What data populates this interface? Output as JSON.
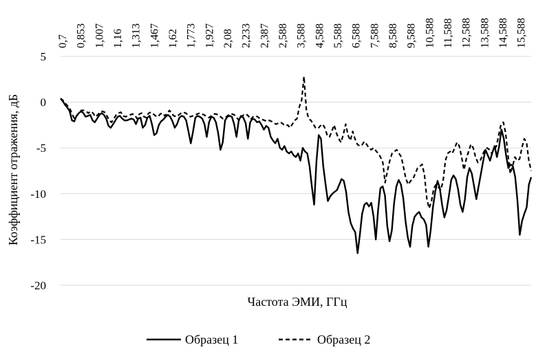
{
  "chart_data": {
    "type": "line",
    "title": "",
    "xlabel": "Частота ЭМИ, ГГц",
    "ylabel": "Коэффициент отражения, дБ",
    "ylim": [
      -20,
      5
    ],
    "yticks": [
      "5",
      "0",
      "-5",
      "-10",
      "-15",
      "-20"
    ],
    "x_tick_labels": [
      "0,7",
      "0,853",
      "1,007",
      "1,16",
      "1,313",
      "1,467",
      "1,62",
      "1,773",
      "1,927",
      "2,08",
      "2,233",
      "2,387",
      "2,588",
      "3,588",
      "4,588",
      "5,588",
      "6,588",
      "7,588",
      "8,588",
      "9,588",
      "10,588",
      "11,588",
      "12,588",
      "13,588",
      "14,588",
      "15,588"
    ],
    "grid": "horizontal",
    "legend_position": "bottom",
    "series": [
      {
        "name": "Образец 1",
        "style": "solid",
        "color": "#000000",
        "values": [
          0.4,
          0.1,
          -0.3,
          -0.6,
          -1.0,
          -2.0,
          -2.1,
          -1.5,
          -1.2,
          -1.0,
          -1.2,
          -1.6,
          -1.5,
          -1.4,
          -2.0,
          -2.2,
          -1.8,
          -1.4,
          -1.2,
          -1.4,
          -1.8,
          -2.6,
          -2.8,
          -2.4,
          -2.0,
          -1.6,
          -1.5,
          -1.8,
          -2.0,
          -2.0,
          -1.9,
          -1.8,
          -1.9,
          -2.4,
          -1.8,
          -1.7,
          -2.8,
          -2.5,
          -1.7,
          -1.5,
          -2.4,
          -3.6,
          -3.4,
          -2.5,
          -2.1,
          -1.9,
          -1.6,
          -1.4,
          -1.6,
          -2.1,
          -2.8,
          -2.4,
          -1.7,
          -1.5,
          -1.6,
          -2.0,
          -3.2,
          -4.5,
          -3.2,
          -1.7,
          -1.5,
          -1.6,
          -1.8,
          -2.4,
          -3.8,
          -2.2,
          -1.6,
          -1.7,
          -2.2,
          -3.4,
          -5.2,
          -4.4,
          -2.0,
          -1.6,
          -1.5,
          -1.6,
          -2.4,
          -3.8,
          -2.0,
          -1.5,
          -1.7,
          -2.3,
          -4.0,
          -2.2,
          -1.8,
          -1.9,
          -2.2,
          -2.1,
          -2.5,
          -3.0,
          -2.6,
          -2.8,
          -3.8,
          -4.2,
          -4.5,
          -4.0,
          -5.0,
          -5.2,
          -4.8,
          -5.4,
          -5.6,
          -5.4,
          -5.8,
          -6.0,
          -5.6,
          -6.4,
          -5.0,
          -5.4,
          -5.6,
          -7.0,
          -9.2,
          -11.2,
          -6.5,
          -3.6,
          -4.0,
          -7.0,
          -9.0,
          -10.8,
          -10.3,
          -10.0,
          -9.8,
          -9.6,
          -9.0,
          -8.4,
          -8.6,
          -9.8,
          -12.0,
          -13.2,
          -13.8,
          -14.2,
          -16.5,
          -14.5,
          -12.2,
          -11.2,
          -11.0,
          -11.4,
          -11.0,
          -12.5,
          -15.0,
          -11.8,
          -9.4,
          -9.2,
          -10.2,
          -13.5,
          -15.2,
          -14.0,
          -11.0,
          -9.2,
          -8.5,
          -9.0,
          -10.5,
          -13.0,
          -14.8,
          -15.8,
          -13.5,
          -12.5,
          -12.2,
          -12.0,
          -12.6,
          -12.8,
          -13.4,
          -15.8,
          -14.0,
          -11.5,
          -9.8,
          -8.6,
          -9.4,
          -11.2,
          -12.6,
          -11.8,
          -10.2,
          -8.5,
          -8.0,
          -8.4,
          -9.5,
          -11.2,
          -12.0,
          -10.6,
          -8.2,
          -7.2,
          -7.8,
          -9.2,
          -10.6,
          -9.2,
          -7.8,
          -6.4,
          -5.2,
          -5.8,
          -6.4,
          -5.5,
          -4.8,
          -6.0,
          -4.8,
          -3.0,
          -4.0,
          -5.8,
          -7.2,
          -6.8,
          -7.0,
          -8.2,
          -10.8,
          -14.5,
          -13.0,
          -12.2,
          -11.5,
          -9.0,
          -8.2
        ]
      },
      {
        "name": "Образец 2",
        "style": "dashed",
        "color": "#000000",
        "values": [
          0.4,
          0.2,
          -0.1,
          -0.4,
          -0.7,
          -1.3,
          -1.8,
          -1.5,
          -1.1,
          -0.9,
          -0.9,
          -1.0,
          -1.2,
          -1.0,
          -1.2,
          -1.6,
          -1.4,
          -1.1,
          -1.0,
          -1.1,
          -1.5,
          -2.0,
          -2.2,
          -1.8,
          -1.4,
          -1.2,
          -1.1,
          -1.5,
          -1.6,
          -1.5,
          -1.4,
          -1.3,
          -1.4,
          -1.8,
          -1.3,
          -1.2,
          -1.6,
          -1.7,
          -1.2,
          -1.1,
          -1.3,
          -1.5,
          -1.6,
          -1.3,
          -1.2,
          -1.5,
          -1.2,
          -0.9,
          -1.3,
          -1.5,
          -1.6,
          -1.4,
          -1.2,
          -1.1,
          -1.2,
          -1.4,
          -1.6,
          -1.5,
          -1.4,
          -1.3,
          -1.2,
          -1.3,
          -1.4,
          -1.6,
          -1.7,
          -1.5,
          -1.3,
          -1.3,
          -1.4,
          -1.6,
          -1.8,
          -1.7,
          -1.5,
          -1.3,
          -1.3,
          -1.4,
          -1.7,
          -2.0,
          -1.6,
          -1.4,
          -1.3,
          -1.5,
          -1.9,
          -1.6,
          -1.5,
          -1.6,
          -1.8,
          -1.9,
          -2.0,
          -2.1,
          -2.0,
          -2.1,
          -2.3,
          -2.4,
          -2.3,
          -2.2,
          -2.4,
          -2.6,
          -2.5,
          -2.8,
          -2.4,
          -2.0,
          -1.8,
          -0.5,
          0.2,
          2.8,
          -0.8,
          -1.8,
          -2.0,
          -2.4,
          -2.8,
          -2.9,
          -2.6,
          -2.4,
          -2.8,
          -3.6,
          -3.8,
          -3.2,
          -2.5,
          -3.4,
          -4.0,
          -4.4,
          -3.5,
          -2.4,
          -3.6,
          -4.2,
          -3.2,
          -4.0,
          -4.6,
          -4.8,
          -4.7,
          -4.3,
          -4.6,
          -5.0,
          -5.2,
          -5.0,
          -5.3,
          -5.6,
          -6.0,
          -6.6,
          -8.8,
          -7.5,
          -6.4,
          -5.6,
          -5.4,
          -5.2,
          -5.6,
          -6.0,
          -7.2,
          -8.4,
          -9.0,
          -8.6,
          -8.4,
          -7.8,
          -7.2,
          -7.0,
          -6.8,
          -8.0,
          -10.6,
          -11.6,
          -10.8,
          -9.4,
          -9.0,
          -9.3,
          -9.6,
          -8.6,
          -6.4,
          -5.6,
          -5.4,
          -5.6,
          -5.0,
          -4.4,
          -4.8,
          -6.0,
          -7.4,
          -6.2,
          -5.4,
          -4.6,
          -5.0,
          -6.0,
          -6.6,
          -6.4,
          -5.8,
          -5.2,
          -5.0,
          -5.2,
          -5.6,
          -5.2,
          -4.8,
          -3.6,
          -2.4,
          -2.2,
          -3.4,
          -5.8,
          -7.8,
          -7.0,
          -6.0,
          -6.4,
          -6.2,
          -5.0,
          -4.0,
          -4.4,
          -6.4,
          -7.5
        ]
      }
    ]
  }
}
